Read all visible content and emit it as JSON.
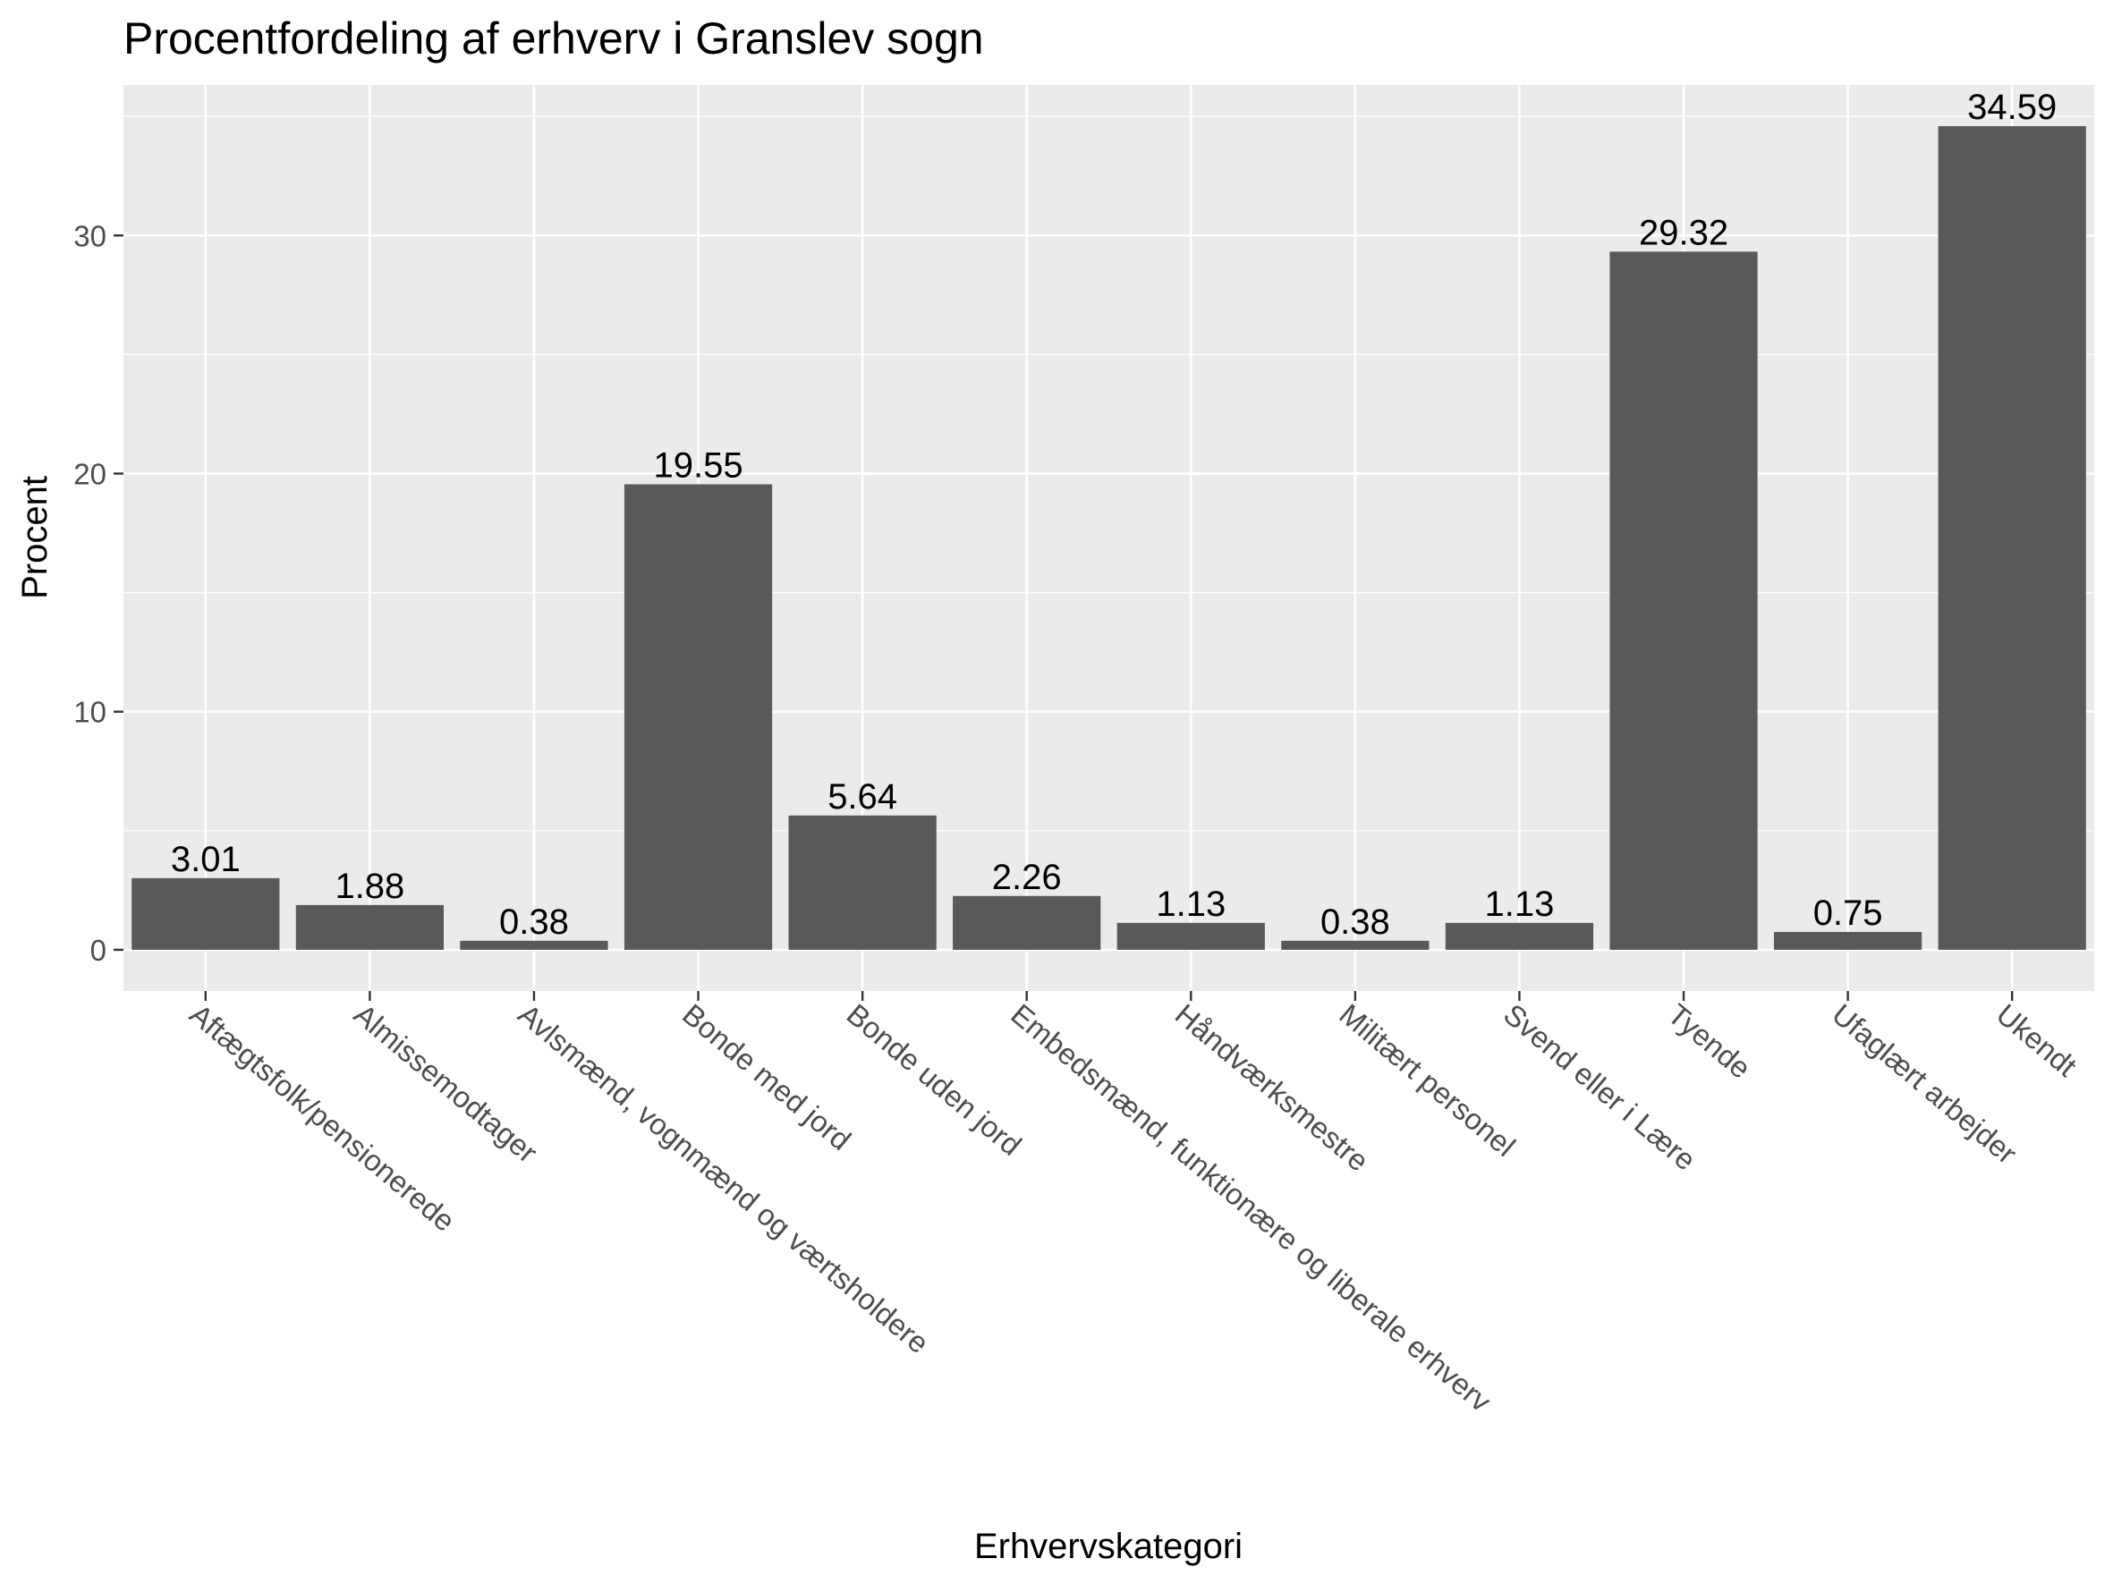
{
  "chart_data": {
    "type": "bar",
    "title": "Procentfordeling af erhverv i Granslev sogn",
    "xlabel": "Erhvervskategori",
    "ylabel": "Procent",
    "categories": [
      "Aftægtsfolk/pensionerede",
      "Almissemodtager",
      "Avlsmænd, vognmænd og værtsholdere",
      "Bonde med jord",
      "Bonde uden jord",
      "Embedsmænd, funktionære og liberale erhverv",
      "Håndværksmestre",
      "Militært personel",
      "Svend eller i Lære",
      "Tyende",
      "Ufaglært arbejder",
      "Ukendt"
    ],
    "values": [
      3.01,
      1.88,
      0.38,
      19.55,
      5.64,
      2.26,
      1.13,
      0.38,
      1.13,
      29.32,
      0.75,
      34.59
    ],
    "value_labels": [
      "3.01",
      "1.88",
      "0.38",
      "19.55",
      "5.64",
      "2.26",
      "1.13",
      "0.38",
      "1.13",
      "29.32",
      "0.75",
      "34.59"
    ],
    "y_ticks": [
      0,
      10,
      20,
      30
    ],
    "y_tick_labels": [
      "0",
      "10",
      "20",
      "30"
    ],
    "ylim": [
      -1.73,
      36.32
    ],
    "grid": true,
    "legend": "none",
    "colors": {
      "bar": "#595959",
      "panel": "#ebebeb",
      "grid": "#ffffff",
      "tick_text": "#4d4d4d",
      "tick_mark": "#333333"
    }
  }
}
